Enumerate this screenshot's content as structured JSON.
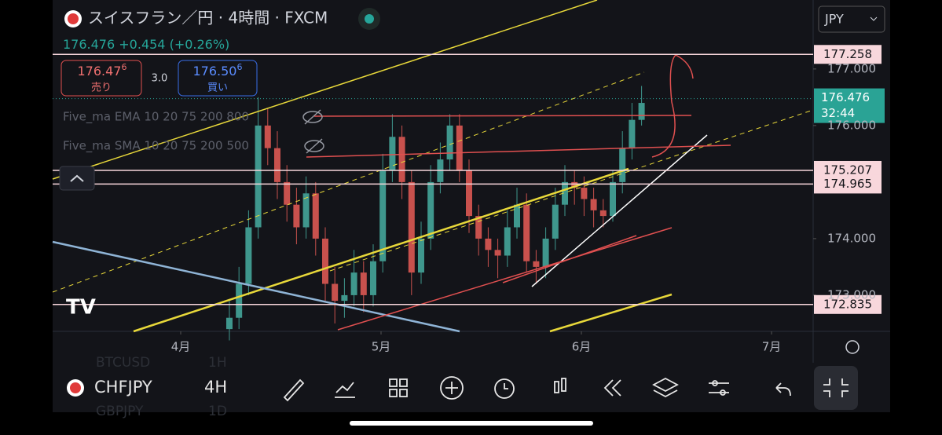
{
  "header": {
    "title": "スイスフラン／円 · 4時間 · FXCM",
    "last": "176.476",
    "change": "+0.454",
    "change_pct": "(+0.26%)",
    "currency": "JPY"
  },
  "trade": {
    "sell_price": "176.47",
    "sell_pip": "6",
    "sell_label": "売り",
    "spread": "3.0",
    "buy_price": "176.50",
    "buy_pip": "6",
    "buy_label": "買い"
  },
  "indicators": [
    "Five_ma EMA 10 20 75 200 800",
    "Five_ma SMA 10 20 75 200 500"
  ],
  "chart_data": {
    "type": "candlestick",
    "categories": [
      null,
      null,
      null,
      null,
      null,
      null,
      null,
      null,
      null,
      null,
      null,
      null,
      null,
      null,
      null,
      null,
      null,
      null,
      null,
      null,
      null,
      null,
      null,
      null,
      null,
      null,
      null,
      null,
      null,
      null,
      null,
      null,
      null,
      null,
      null,
      null,
      null,
      null,
      null,
      null,
      null,
      null,
      null,
      null
    ],
    "open": [
      172.4,
      172.6,
      173.2,
      174.2,
      176.0,
      175.6,
      175.0,
      174.6,
      174.2,
      174.8,
      174.0,
      173.2,
      172.9,
      173.0,
      173.4,
      173.0,
      173.6,
      175.2,
      175.8,
      175.0,
      173.4,
      174.0,
      175.0,
      175.4,
      176.0,
      175.2,
      174.4,
      174.0,
      173.8,
      173.7,
      174.2,
      174.6,
      173.6,
      173.5,
      174.0,
      174.6,
      175.0,
      174.9,
      174.7,
      174.5,
      174.4,
      175.0,
      175.6,
      176.1
    ],
    "high": [
      172.9,
      173.5,
      174.5,
      176.5,
      176.3,
      175.9,
      175.3,
      174.9,
      175.1,
      175.0,
      174.2,
      173.5,
      173.3,
      173.8,
      173.6,
      173.9,
      175.5,
      176.2,
      176.0,
      175.2,
      174.3,
      175.3,
      175.7,
      176.2,
      176.2,
      175.4,
      174.6,
      174.2,
      174.0,
      174.5,
      174.9,
      174.8,
      173.8,
      174.2,
      174.9,
      175.3,
      175.2,
      175.1,
      174.9,
      174.7,
      175.2,
      175.9,
      176.4,
      176.7
    ],
    "low": [
      172.2,
      172.4,
      173.0,
      174.0,
      175.3,
      174.7,
      174.3,
      173.9,
      174.0,
      173.7,
      172.9,
      172.5,
      172.6,
      172.8,
      172.7,
      172.8,
      173.4,
      175.0,
      174.7,
      173.0,
      173.2,
      173.8,
      174.8,
      175.2,
      175.0,
      174.1,
      173.7,
      173.5,
      173.3,
      173.5,
      174.0,
      173.4,
      173.2,
      173.3,
      173.8,
      174.4,
      174.6,
      174.4,
      174.2,
      174.2,
      174.3,
      174.8,
      175.4,
      176.0
    ],
    "close": [
      172.6,
      173.2,
      174.2,
      176.0,
      175.6,
      175.0,
      174.6,
      174.2,
      174.8,
      174.0,
      173.2,
      172.9,
      173.0,
      173.4,
      173.0,
      173.6,
      175.2,
      175.8,
      175.0,
      173.4,
      174.0,
      175.0,
      175.4,
      176.0,
      175.2,
      174.4,
      174.0,
      173.8,
      173.7,
      174.2,
      174.6,
      173.6,
      173.5,
      174.0,
      174.6,
      175.0,
      174.9,
      174.7,
      174.5,
      174.4,
      175.0,
      175.6,
      176.1,
      176.4
    ],
    "up_color": "#3f978d",
    "down_color": "#c8514d",
    "xlim": [
      -18.44,
      60.9
    ],
    "xticks": [
      {
        "value": -5.08,
        "label": "4月"
      },
      {
        "value": 15.82,
        "label": "5月"
      },
      {
        "value": 36.72,
        "label": "6月"
      },
      {
        "value": 56.56,
        "label": "7月"
      }
    ],
    "ylim": [
      172.36,
      178.22
    ],
    "yticks": [
      {
        "value": 177,
        "label": "177.000"
      },
      {
        "value": 176,
        "label": "176.000"
      },
      {
        "value": 174,
        "label": "174.000"
      },
      {
        "value": 173,
        "label": "173.000"
      }
    ],
    "levels": [
      177.258,
      175.207,
      174.965,
      172.835
    ],
    "level_color": "#f8d7dc",
    "last_price": 176.476,
    "countdown": "32:44",
    "last_color": "#2aa395"
  },
  "toolbar": {
    "symbol": "CHFJPY",
    "interval": "4H"
  },
  "background_watchlist": [
    "BTCUSD",
    "1H",
    "GBPJPY",
    "1D"
  ]
}
